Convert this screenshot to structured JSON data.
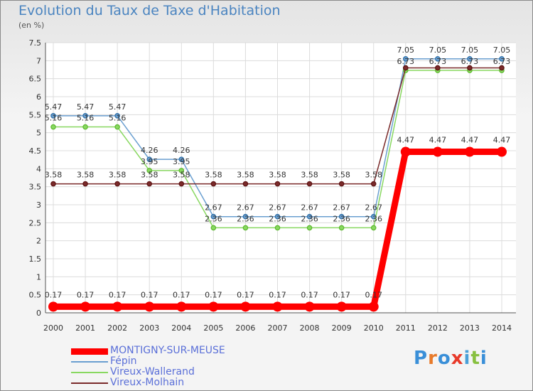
{
  "chart_data": {
    "type": "line",
    "title": "Evolution du Taux de Taxe d'Habitation",
    "unit_label": "(en %)",
    "x": [
      "2000",
      "2001",
      "2002",
      "2003",
      "2004",
      "2005",
      "2006",
      "2007",
      "2008",
      "2009",
      "2010",
      "2011",
      "2012",
      "2013",
      "2014"
    ],
    "ylim": [
      0,
      7.5
    ],
    "yticks": [
      "0",
      "0.5",
      "1",
      "1.5",
      "2",
      "2.5",
      "3",
      "3.5",
      "4",
      "4.5",
      "5",
      "5.5",
      "6",
      "6.5",
      "7",
      "7.5"
    ],
    "grid": true,
    "legend_position": "bottom-left",
    "series": [
      {
        "name": "MONTIGNY-SUR-MEUSE",
        "color": "#ff0000",
        "emphasis": true,
        "values": [
          0.17,
          0.17,
          0.17,
          0.17,
          0.17,
          0.17,
          0.17,
          0.17,
          0.17,
          0.17,
          0.17,
          4.47,
          4.47,
          4.47,
          4.47
        ],
        "labels": [
          "0.17",
          "0.17",
          "0.17",
          "0.17",
          "0.17",
          "0.17",
          "0.17",
          "0.17",
          "0.17",
          "0.17",
          "0.17",
          "4.47",
          "4.47",
          "4.47",
          "4.47"
        ]
      },
      {
        "name": "Fépin",
        "color": "#6a9fd0",
        "marker": "#2e6ea6",
        "values": [
          5.47,
          5.47,
          5.47,
          4.26,
          4.26,
          2.67,
          2.67,
          2.67,
          2.67,
          2.67,
          2.67,
          7.05,
          7.05,
          7.05,
          7.05
        ],
        "labels": [
          "5.47",
          "5.47",
          "5.47",
          "4.26",
          "4.26",
          "2.67",
          "2.67",
          "2.67",
          "2.67",
          "2.67",
          "2.67",
          "7.05",
          "7.05",
          "7.05",
          "7.05"
        ]
      },
      {
        "name": "Vireux-Wallerand",
        "color": "#88d860",
        "marker": "#5cb82e",
        "values": [
          5.16,
          5.16,
          5.16,
          3.95,
          3.95,
          2.36,
          2.36,
          2.36,
          2.36,
          2.36,
          2.36,
          6.73,
          6.73,
          6.73,
          6.73
        ],
        "labels": [
          "5.16",
          "5.16",
          "5.16",
          "3.95",
          "3.95",
          "2.36",
          "2.36",
          "2.36",
          "2.36",
          "2.36",
          "2.36",
          "6.73",
          "6.73",
          "6.73",
          "6.73"
        ]
      },
      {
        "name": "Vireux-Molhain",
        "color": "#7a2a2a",
        "marker": "#5a1010",
        "values": [
          3.58,
          3.58,
          3.58,
          3.58,
          3.58,
          3.58,
          3.58,
          3.58,
          3.58,
          3.58,
          3.58,
          6.8,
          6.8,
          6.8,
          6.8
        ],
        "labels": [
          "3.58",
          "3.58",
          "3.58",
          "3.58",
          "3.58",
          "3.58",
          "3.58",
          "3.58",
          "3.58",
          "3.58",
          "3.58",
          "",
          "",
          "",
          ""
        ]
      }
    ]
  },
  "legend": {
    "items": [
      {
        "label": "MONTIGNY-SUR-MEUSE",
        "color": "#ff0000",
        "text_color": "#5a6fd8",
        "thick": true
      },
      {
        "label": "Fépin",
        "color": "#6a9fd0",
        "text_color": "#5a6fd8",
        "thick": false
      },
      {
        "label": "Vireux-Wallerand",
        "color": "#88d860",
        "text_color": "#5a6fd8",
        "thick": false
      },
      {
        "label": "Vireux-Molhain",
        "color": "#7a2a2a",
        "text_color": "#5a6fd8",
        "thick": false
      }
    ]
  },
  "logo": {
    "text": "Proxiti",
    "letters": [
      {
        "ch": "P",
        "color": "#3a8fd8"
      },
      {
        "ch": "r",
        "color": "#e87a2a"
      },
      {
        "ch": "o",
        "color": "#3a8fd8"
      },
      {
        "ch": "x",
        "color": "#e83a2a"
      },
      {
        "ch": "i",
        "color": "#4aa0d8"
      },
      {
        "ch": "t",
        "color": "#88c040"
      },
      {
        "ch": "i",
        "color": "#3a8fd8"
      }
    ]
  }
}
